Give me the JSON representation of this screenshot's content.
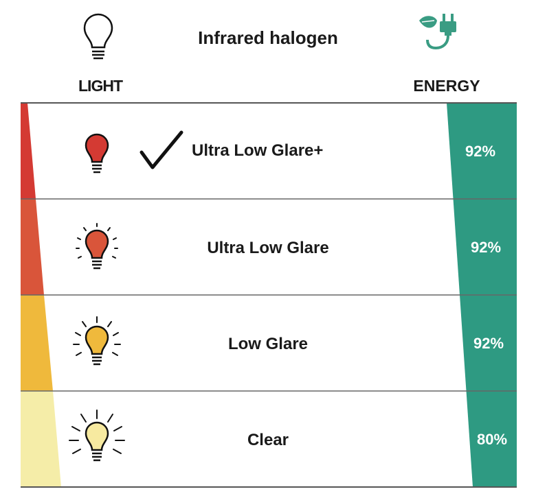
{
  "header": {
    "title": "Infrared halogen",
    "light_label": "LIGHT",
    "energy_label": "ENERGY"
  },
  "rows": [
    {
      "label": "Ultra Low Glare+",
      "percent": "92%",
      "bulb_color": "#d43a33",
      "selected": true
    },
    {
      "label": "Ultra Low Glare",
      "percent": "92%",
      "bulb_color": "#d9553a",
      "selected": false
    },
    {
      "label": "Low Glare",
      "percent": "92%",
      "bulb_color": "#efb93c",
      "selected": false
    },
    {
      "label": "Clear",
      "percent": "80%",
      "bulb_color": "#f7eaa0",
      "selected": false
    }
  ],
  "colors": {
    "energy_bar": "#2e9a82",
    "icon_green": "#3a9c83",
    "divider": "#555555"
  },
  "icons": [
    "bulb-outline-icon",
    "plug-leaf-icon",
    "checkmark-icon",
    "bulb-icon"
  ]
}
